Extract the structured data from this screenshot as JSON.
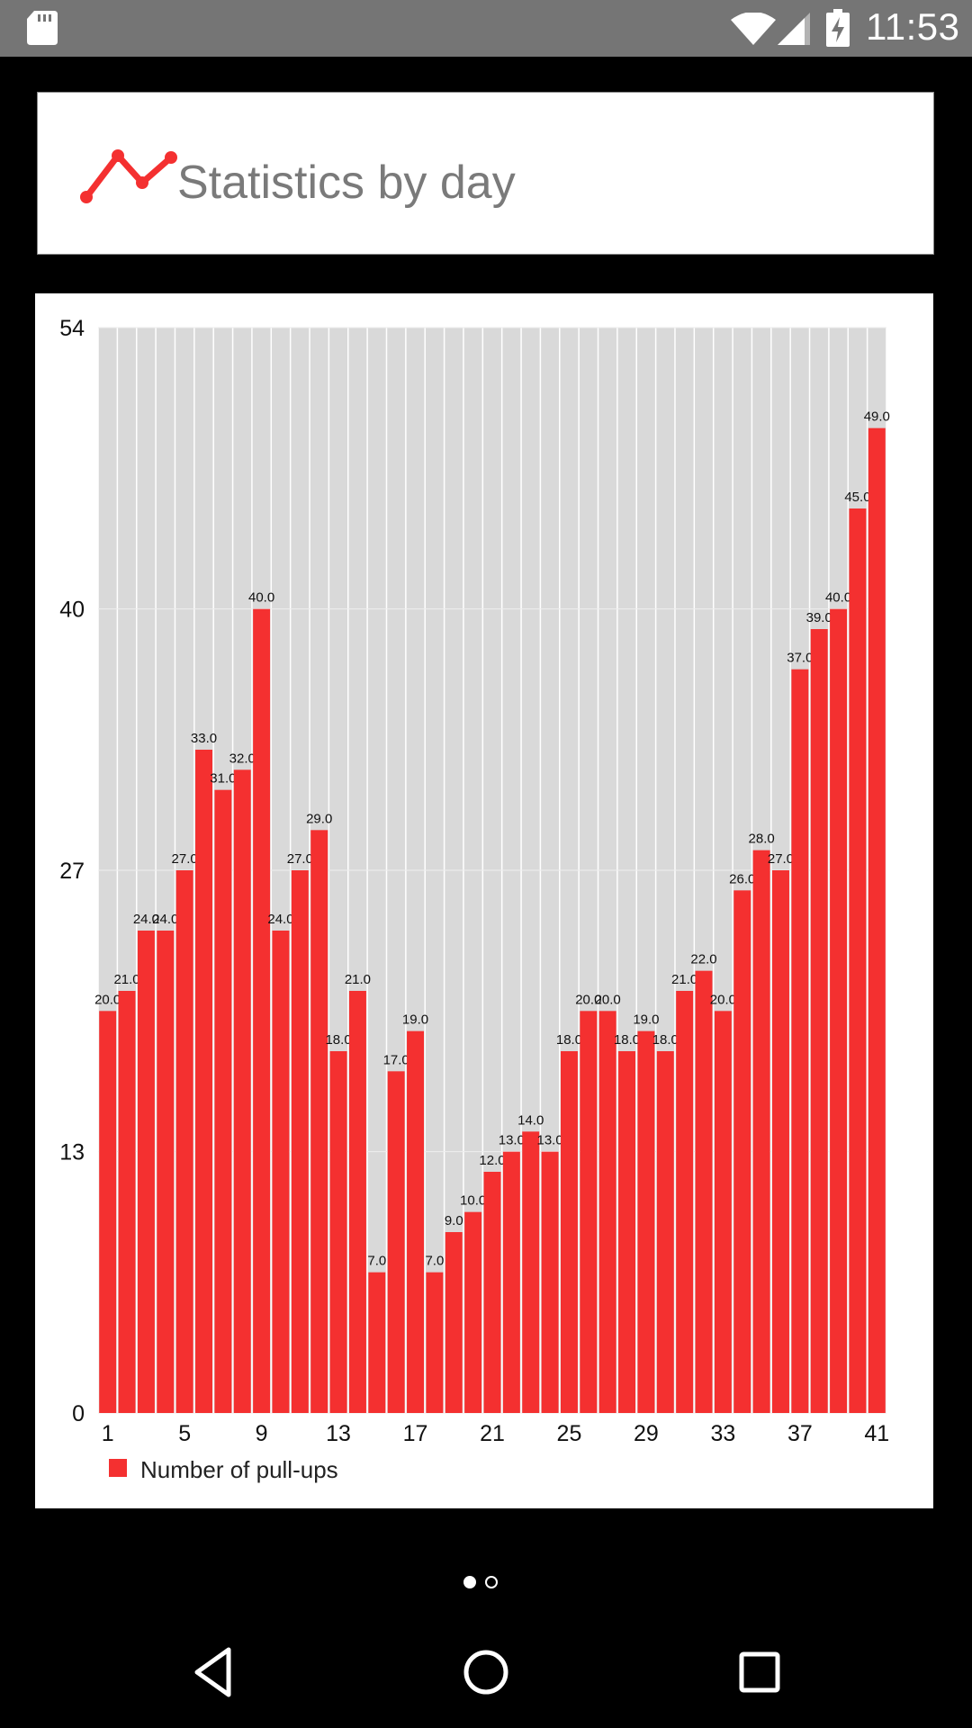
{
  "status_bar": {
    "time": "11:53",
    "icons": [
      "sd-card-icon",
      "wifi-icon",
      "signal-icon",
      "battery-charging-icon"
    ]
  },
  "header": {
    "title": "Statistics by day",
    "icon": "line-chart-icon",
    "accent_color": "#f43030"
  },
  "chart_data": {
    "type": "bar",
    "categories": [
      1,
      2,
      3,
      4,
      5,
      6,
      7,
      8,
      9,
      10,
      11,
      12,
      13,
      14,
      15,
      16,
      17,
      18,
      19,
      20,
      21,
      22,
      23,
      24,
      25,
      26,
      27,
      28,
      29,
      30,
      31,
      32,
      33,
      34,
      35,
      36,
      37,
      38,
      39,
      40,
      41
    ],
    "x_tick_labels": [
      "1",
      "5",
      "9",
      "13",
      "17",
      "21",
      "25",
      "29",
      "33",
      "37",
      "41"
    ],
    "y_tick_labels": [
      "0",
      "13",
      "27",
      "40",
      "54"
    ],
    "ylim": [
      0,
      54
    ],
    "series": [
      {
        "name": "Number of pull-ups",
        "color": "#f43030",
        "values": [
          20,
          21,
          24,
          24,
          27,
          33,
          31,
          32,
          40,
          24,
          27,
          29,
          18,
          21,
          7,
          17,
          19,
          7,
          9,
          10,
          12,
          13,
          14,
          13,
          18,
          20,
          20,
          18,
          19,
          18,
          21,
          22,
          20,
          26,
          28,
          27,
          37,
          39,
          40,
          45,
          49
        ],
        "data_labels": [
          "20.0",
          "21.0",
          "24.0",
          "24.0",
          "27.0",
          "33.0",
          "31.0",
          "32.0",
          "40.0",
          "24.0",
          "27.0",
          "29.0",
          "18.0",
          "21.0",
          "7.0",
          "17.0",
          "19.0",
          "7.0",
          "9.0",
          "10.0",
          "12.0",
          "13.0",
          "14.0",
          "13.0",
          "18.0",
          "20.0",
          "20.0",
          "18.0",
          "19.0",
          "18.0",
          "21.0",
          "22.0",
          "20.0",
          "26.0",
          "28.0",
          "27.0",
          "37.0",
          "39.0",
          "40.0",
          "45.0",
          "49.0"
        ]
      }
    ],
    "background_color": "#d9d9d9",
    "grid": true,
    "legend_position": "bottom-left"
  },
  "legend": {
    "label": "Number of pull-ups"
  },
  "pager": {
    "page_count": 2,
    "active_index": 0
  },
  "nav_bar": {
    "buttons": [
      "back-icon",
      "home-icon",
      "recents-icon"
    ]
  }
}
